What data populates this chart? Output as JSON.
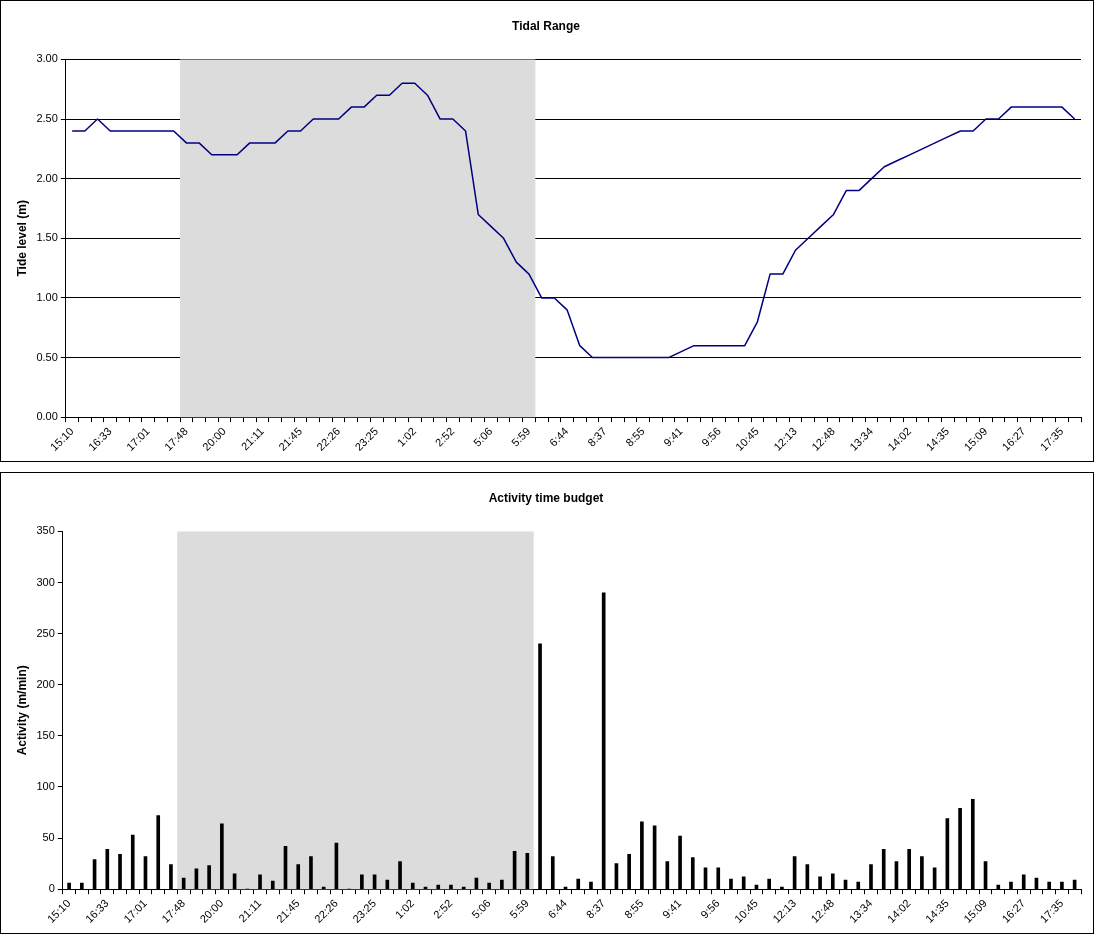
{
  "chart_data": [
    {
      "type": "line",
      "title": "Tidal Range",
      "ylabel": "Tide level (m)",
      "categories": [
        "15:10",
        null,
        null,
        "16:33",
        null,
        null,
        "17:01",
        null,
        null,
        "17:48",
        null,
        null,
        "20:00",
        null,
        null,
        "21:11",
        null,
        null,
        "21:45",
        null,
        null,
        "22:26",
        null,
        null,
        "23:25",
        null,
        null,
        "1:02",
        null,
        null,
        "2:52",
        null,
        null,
        "5:06",
        null,
        null,
        "5:59",
        null,
        null,
        "6:44",
        null,
        null,
        "8:37",
        null,
        null,
        "8:55",
        null,
        null,
        "9:41",
        null,
        null,
        "9:56",
        null,
        null,
        "10:45",
        null,
        null,
        "12:13",
        null,
        null,
        "12:48",
        null,
        null,
        "13:34",
        null,
        null,
        "14:02",
        null,
        null,
        "14:35",
        null,
        null,
        "15:09",
        null,
        null,
        "16:27",
        null,
        null,
        "17:35",
        null
      ],
      "series": [
        {
          "color": "#000080",
          "values": [
            2.4,
            2.4,
            2.5,
            2.4,
            2.4,
            2.4,
            2.4,
            2.4,
            2.4,
            2.3,
            2.3,
            2.2,
            2.2,
            2.2,
            2.3,
            2.3,
            2.3,
            2.4,
            2.4,
            2.5,
            2.5,
            2.5,
            2.6,
            2.6,
            2.7,
            2.7,
            2.8,
            2.8,
            2.7,
            2.5,
            2.5,
            2.4,
            1.7,
            1.6,
            1.5,
            1.3,
            1.2,
            1.0,
            1.0,
            0.9,
            0.6,
            0.5,
            0.5,
            0.5,
            0.5,
            0.5,
            0.5,
            0.5,
            0.55,
            0.6,
            0.6,
            0.6,
            0.6,
            0.6,
            0.8,
            1.2,
            1.2,
            1.4,
            1.5,
            1.6,
            1.7,
            1.9,
            1.9,
            2.0,
            2.1,
            2.15,
            2.2,
            2.25,
            2.3,
            2.35,
            2.4,
            2.4,
            2.5,
            2.5,
            2.6,
            2.6,
            2.6,
            2.6,
            2.6,
            2.5
          ]
        }
      ],
      "ylim": [
        0,
        3
      ],
      "yticks": [
        {
          "value": 0,
          "label": "0.00"
        },
        {
          "value": 0.5,
          "label": "0.50"
        },
        {
          "value": 1,
          "label": "1.00"
        },
        {
          "value": 1.5,
          "label": "1.50"
        },
        {
          "value": 2,
          "label": "2.00"
        },
        {
          "value": 2.5,
          "label": "2.50"
        },
        {
          "value": 3,
          "label": "3.00"
        }
      ],
      "grid": "y",
      "bands": [
        {
          "axis": "x",
          "from": "17:48",
          "to": "5:59",
          "color": "#dcdcdc"
        }
      ]
    },
    {
      "type": "bar",
      "title": "Activity time budget",
      "ylabel": "Activity (m/min)",
      "categories": [
        "15:10",
        null,
        null,
        "16:33",
        null,
        null,
        "17:01",
        null,
        null,
        "17:48",
        null,
        null,
        "20:00",
        null,
        null,
        "21:11",
        null,
        null,
        "21:45",
        null,
        null,
        "22:26",
        null,
        null,
        "23:25",
        null,
        null,
        "1:02",
        null,
        null,
        "2:52",
        null,
        null,
        "5:06",
        null,
        null,
        "5:59",
        null,
        null,
        "6:44",
        null,
        null,
        "8:37",
        null,
        null,
        "8:55",
        null,
        null,
        "9:41",
        null,
        null,
        "9:56",
        null,
        null,
        "10:45",
        null,
        null,
        "12:13",
        null,
        null,
        "12:48",
        null,
        null,
        "13:34",
        null,
        null,
        "14:02",
        null,
        null,
        "14:35",
        null,
        null,
        "15:09",
        null,
        null,
        "16:27",
        null,
        null,
        "17:35",
        null
      ],
      "series": [
        {
          "color": "#000000",
          "values": [
            6,
            6,
            29,
            39,
            34,
            53,
            32,
            72,
            24,
            11,
            20,
            23,
            64,
            15,
            0,
            14,
            8,
            42,
            24,
            32,
            2,
            45,
            0,
            14,
            14,
            9,
            27,
            6,
            2,
            4,
            4,
            2,
            11,
            6,
            9,
            37,
            35,
            240,
            32,
            2,
            10,
            7,
            290,
            25,
            34,
            66,
            62,
            27,
            52,
            31,
            21,
            21,
            10,
            12,
            4,
            10,
            2,
            32,
            24,
            12,
            15,
            9,
            7,
            24,
            39,
            27,
            39,
            32,
            21,
            69,
            79,
            88,
            27,
            4,
            7,
            14,
            11,
            7,
            7,
            9
          ]
        }
      ],
      "ylim": [
        0,
        350
      ],
      "yticks": [
        0,
        50,
        100,
        150,
        200,
        250,
        300,
        350
      ],
      "bands": [
        {
          "axis": "x",
          "from": "17:48",
          "to": "5:59",
          "color": "#dcdcdc"
        }
      ]
    }
  ]
}
